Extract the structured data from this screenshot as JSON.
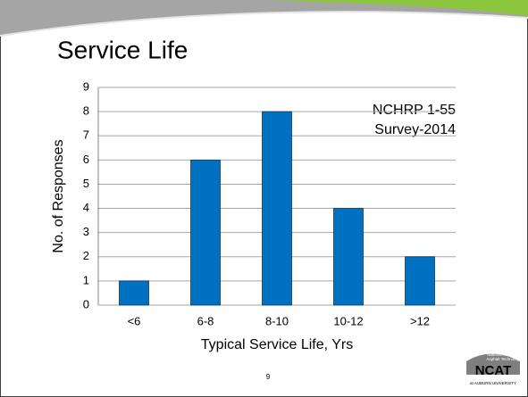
{
  "chart_data": {
    "type": "bar",
    "title": "Service Life",
    "annotation": [
      "NCHRP 1-55",
      "Survey-2014"
    ],
    "x_label": "Typical Service Life, Yrs",
    "y_label": "No. of Responses",
    "categories": [
      "<6",
      "6-8",
      "8-10",
      "10-12",
      ">12"
    ],
    "values": [
      1,
      6,
      8,
      4,
      2
    ],
    "color": "#0070c0",
    "ylim": [
      0,
      9
    ],
    "yticks": [
      0,
      1,
      2,
      3,
      4,
      5,
      6,
      7,
      8,
      9
    ],
    "grid": true
  },
  "footer": {
    "page_number": "9",
    "logo": [
      "National Center for",
      "Asphalt Technology",
      "NCAT",
      "at AUBURN UNIVERSITY"
    ]
  }
}
